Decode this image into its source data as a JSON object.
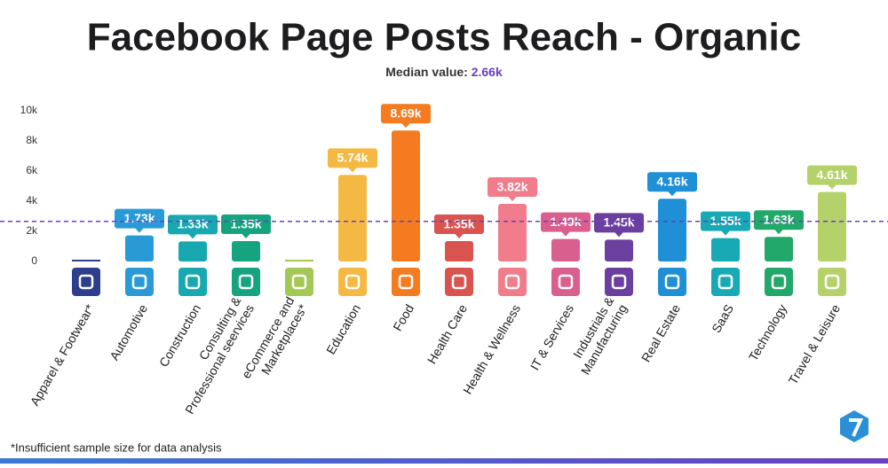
{
  "chart_data": {
    "type": "bar",
    "title": "Facebook Page Posts Reach - Organic",
    "median_label": "Median value:",
    "median": 2660,
    "median_value_label": "2.66k",
    "median_color": "#6a3fc0",
    "categories": [
      [
        "Apparel & Footwear*"
      ],
      [
        "Automotive"
      ],
      [
        "Construction"
      ],
      [
        "Consulting &",
        "Professional seervices"
      ],
      [
        "eCommerce and",
        "Marketplaces*"
      ],
      [
        "Education"
      ],
      [
        "Food"
      ],
      [
        "Health Care"
      ],
      [
        "Health & Wellness"
      ],
      [
        "IT & Services"
      ],
      [
        "Industrials &",
        "Manufacturing"
      ],
      [
        "Real Estate"
      ],
      [
        "SaaS"
      ],
      [
        "Technology"
      ],
      [
        "Travel & Leisure"
      ]
    ],
    "values": [
      null,
      1730,
      1330,
      1350,
      null,
      5740,
      8690,
      1350,
      3820,
      1490,
      1450,
      4160,
      1550,
      1630,
      4610
    ],
    "value_labels": [
      null,
      "1.73k",
      "1.33k",
      "1.35k",
      null,
      "5.74k",
      "8.69k",
      "1.35k",
      "3.82k",
      "1.49k",
      "1.45k",
      "4.16k",
      "1.55k",
      "1.63k",
      "4.61k"
    ],
    "colors": [
      "#2d3e8c",
      "#2a9ad6",
      "#17a8b0",
      "#16a37f",
      "#a4c855",
      "#f4b942",
      "#f47b20",
      "#d9534f",
      "#f07c8c",
      "#d95f8e",
      "#6a3fa0",
      "#1f8fd6",
      "#17aab5",
      "#22a86a",
      "#b5d26a"
    ],
    "ylim": [
      0,
      10000
    ],
    "yticks": [
      0,
      {
        "value": 2000,
        "label": "2k"
      },
      {
        "value": 4000,
        "label": "4k"
      },
      {
        "value": 6000,
        "label": "6k"
      },
      {
        "value": 8000,
        "label": "8k"
      },
      {
        "value": 10000,
        "label": "10k"
      }
    ],
    "footnote": "*Insufficient sample size for data analysis"
  }
}
